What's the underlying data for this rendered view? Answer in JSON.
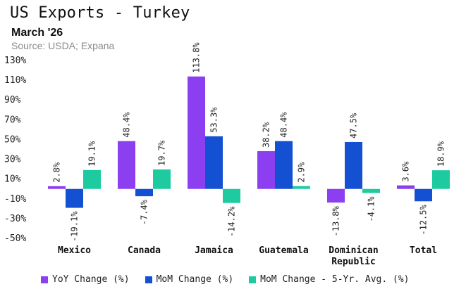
{
  "title": "US Exports - Turkey",
  "subtitle": "March '26",
  "source": "Source: USDA; Expana",
  "colors": {
    "yoy": "#8b3ff0",
    "mom": "#1450d2",
    "avg": "#1ecba0"
  },
  "chart_data": {
    "type": "bar",
    "categories": [
      [
        "Mexico"
      ],
      [
        "Canada"
      ],
      [
        "Jamaica"
      ],
      [
        "Guatemala"
      ],
      [
        "Dominican",
        "Republic"
      ],
      [
        "Total"
      ]
    ],
    "series": [
      {
        "name": "YoY Change (%)",
        "values": [
          2.8,
          48.4,
          113.8,
          38.2,
          -13.8,
          3.6
        ],
        "labels": [
          "2.8%",
          "48.4%",
          "113.8%",
          "38.2%",
          "-13.8%",
          "3.6%"
        ]
      },
      {
        "name": "MoM Change (%)",
        "values": [
          -19.1,
          -7.4,
          53.3,
          48.4,
          47.5,
          -12.5
        ],
        "labels": [
          "-19.1%",
          "-7.4%",
          "53.3%",
          "48.4%",
          "47.5%",
          "-12.5%"
        ]
      },
      {
        "name": "MoM Change - 5-Yr. Avg. (%)",
        "values": [
          19.1,
          19.7,
          -14.2,
          2.9,
          -4.1,
          18.9
        ],
        "labels": [
          "19.1%",
          "19.7%",
          "-14.2%",
          "2.9%",
          "-4.1%",
          "18.9%"
        ]
      }
    ],
    "yticks": [
      -50,
      -30,
      -10,
      10,
      30,
      50,
      70,
      90,
      110,
      130
    ],
    "ytick_labels": [
      "-50%",
      "-30%",
      "-10%",
      "10%",
      "30%",
      "50%",
      "70%",
      "90%",
      "110%",
      "130%"
    ],
    "ylim": [
      -50,
      130
    ],
    "grid": false,
    "legend_position": "bottom"
  }
}
